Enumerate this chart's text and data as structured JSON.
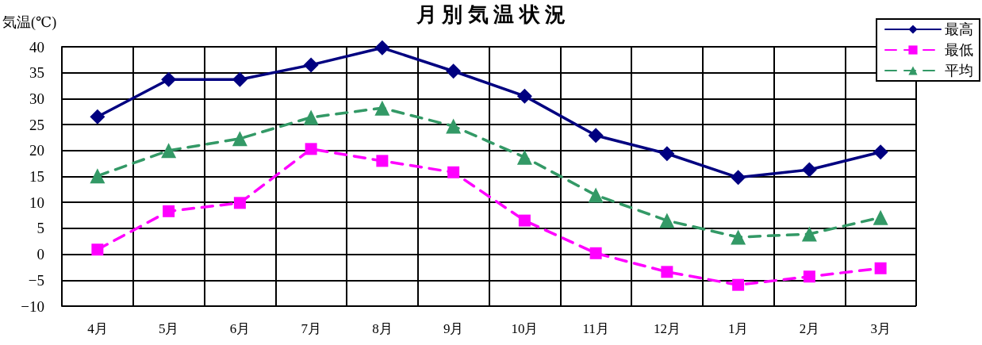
{
  "chart_data": {
    "type": "line",
    "title": "月 別 気 温 状 況",
    "ylabel": "気温(℃)",
    "categories": [
      "4月",
      "5月",
      "6月",
      "7月",
      "8月",
      "9月",
      "10月",
      "11月",
      "12月",
      "1月",
      "2月",
      "3月"
    ],
    "series": [
      {
        "name": "最高",
        "color": "#000080",
        "marker": "diamond",
        "line_style": "solid",
        "values": [
          26.5,
          33.7,
          33.7,
          36.5,
          39.8,
          35.3,
          30.5,
          22.9,
          19.4,
          14.8,
          16.3,
          19.7
        ]
      },
      {
        "name": "最低",
        "color": "#ff00ff",
        "marker": "square",
        "line_style": "dashed",
        "values": [
          0.9,
          8.3,
          9.9,
          20.3,
          18.0,
          15.8,
          6.5,
          0.2,
          -3.4,
          -5.9,
          -4.3,
          -2.7
        ]
      },
      {
        "name": "平均",
        "color": "#339966",
        "marker": "triangle",
        "line_style": "dashed",
        "values": [
          15.1,
          20.0,
          22.3,
          26.4,
          28.2,
          24.7,
          18.7,
          11.4,
          6.5,
          3.3,
          3.9,
          7.1
        ]
      }
    ],
    "ylim": [
      -10,
      40
    ],
    "yticks": [
      -10,
      -5,
      0,
      5,
      10,
      15,
      20,
      25,
      30,
      35,
      40
    ],
    "grid": true,
    "legend": "top right"
  }
}
